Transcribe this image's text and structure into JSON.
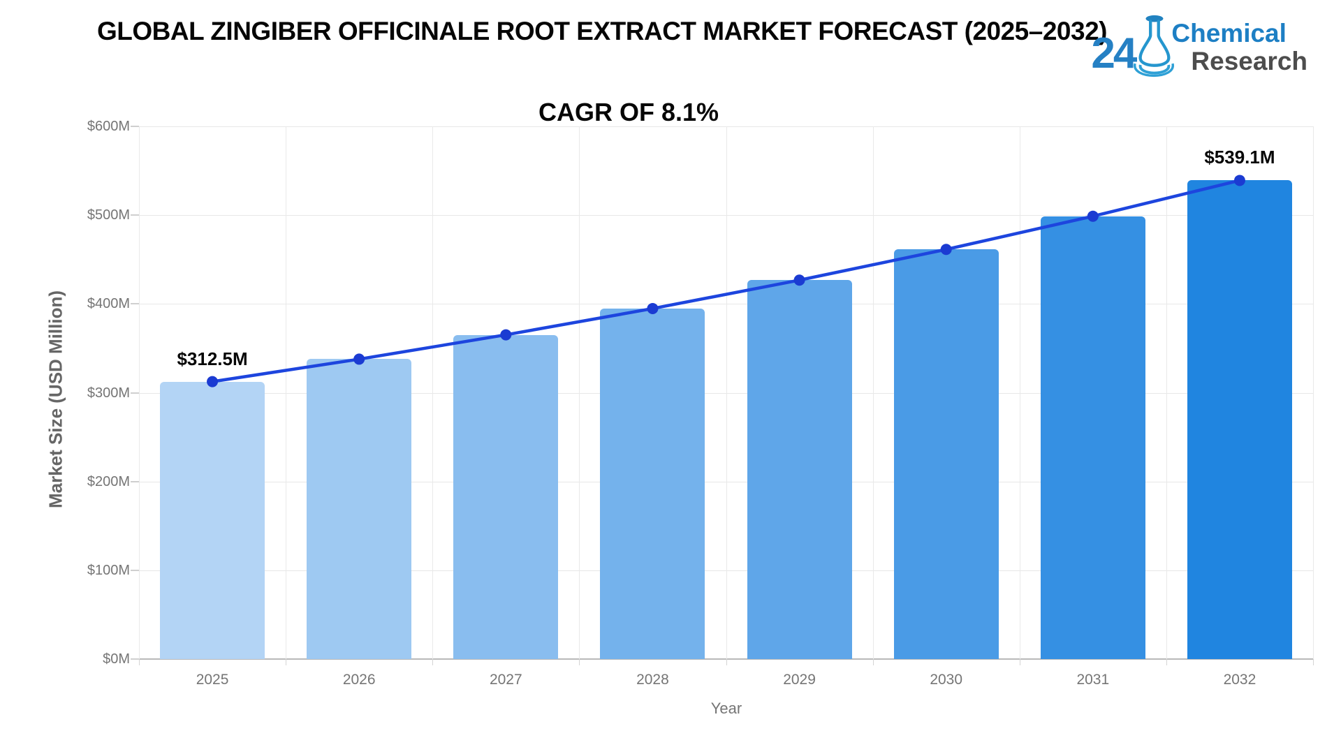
{
  "chart_data": {
    "type": "bar",
    "title": "GLOBAL ZINGIBER OFFICINALE ROOT EXTRACT MARKET FORECAST (2025–2032)",
    "subtitle": "CAGR OF 8.1%",
    "categories": [
      "2025",
      "2026",
      "2027",
      "2028",
      "2029",
      "2030",
      "2031",
      "2032"
    ],
    "series": [
      {
        "name": "Market Size",
        "type": "bar",
        "values": [
          312.5,
          337.8,
          365.2,
          394.8,
          426.8,
          461.4,
          498.8,
          539.1
        ]
      },
      {
        "name": "Trend",
        "type": "line",
        "values": [
          312.5,
          337.8,
          365.2,
          394.8,
          426.8,
          461.4,
          498.8,
          539.1
        ]
      }
    ],
    "xlabel": "Year",
    "ylabel": "Market Size (USD Million)",
    "ylim": [
      0,
      600
    ],
    "yticks": [
      {
        "label": "$0M",
        "value": 0
      },
      {
        "label": "$100M",
        "value": 100
      },
      {
        "label": "$200M",
        "value": 200
      },
      {
        "label": "$300M",
        "value": 300
      },
      {
        "label": "$400M",
        "value": 400
      },
      {
        "label": "$500M",
        "value": 500
      },
      {
        "label": "$600M",
        "value": 600
      }
    ],
    "grid": true,
    "legend": false,
    "bar_colors": [
      "#b3d4f5",
      "#9ec9f2",
      "#89bdef",
      "#74b2ec",
      "#5fa6e9",
      "#4a9be6",
      "#3590e3",
      "#2085e0"
    ],
    "line_color": "#1d45de",
    "point_color": "#1b3bd2",
    "annotations": [
      {
        "index": 0,
        "text": "$312.5M"
      },
      {
        "index": 7,
        "text": "$539.1M"
      }
    ]
  },
  "logo": {
    "number": "24",
    "word1": "Chemical",
    "word2": "Research",
    "number_color": "#2580c4",
    "word1_color": "#1d7fc4",
    "word2_color": "#4d4d4d",
    "flask_color": "#2596ce"
  }
}
